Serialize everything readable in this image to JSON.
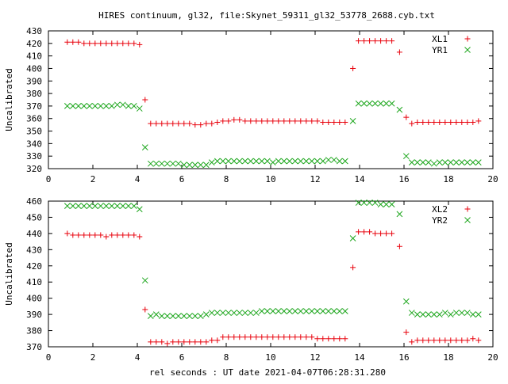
{
  "title": "HIRES continuum, gl32, file:Skynet_59311_gl32_53778_2688.cyb.txt",
  "xlabel": "rel seconds : UT date 2021-04-07T06:28:31.280",
  "colors": {
    "red": "#e8000b",
    "green": "#1fa71f"
  },
  "chart_data": [
    {
      "type": "scatter",
      "ylabel": "Uncalibrated",
      "xlim": [
        0,
        20
      ],
      "ylim": [
        320,
        430
      ],
      "xticks": [
        0,
        2,
        4,
        6,
        8,
        10,
        12,
        14,
        16,
        18,
        20
      ],
      "yticks": [
        320,
        330,
        340,
        350,
        360,
        370,
        380,
        390,
        400,
        410,
        420,
        430
      ],
      "legend_position": "top-right",
      "series": [
        {
          "name": "XL1",
          "marker": "plus",
          "color": "#e8000b",
          "x": [
            0.85,
            1.1,
            1.35,
            1.6,
            1.85,
            2.1,
            2.35,
            2.6,
            2.85,
            3.1,
            3.35,
            3.6,
            3.85,
            4.1,
            4.35,
            4.6,
            4.85,
            5.1,
            5.35,
            5.6,
            5.85,
            6.1,
            6.35,
            6.6,
            6.85,
            7.1,
            7.35,
            7.6,
            7.85,
            8.1,
            8.35,
            8.6,
            8.85,
            9.1,
            9.35,
            9.6,
            9.85,
            10.1,
            10.35,
            10.6,
            10.85,
            11.1,
            11.35,
            11.6,
            11.85,
            12.1,
            12.35,
            12.6,
            12.85,
            13.1,
            13.35,
            13.7,
            13.95,
            14.2,
            14.45,
            14.7,
            14.95,
            15.2,
            15.45,
            15.8,
            16.1,
            16.35,
            16.6,
            16.85,
            17.1,
            17.35,
            17.6,
            17.85,
            18.1,
            18.35,
            18.6,
            18.85,
            19.1,
            19.35
          ],
          "y": [
            421,
            421,
            421,
            420,
            420,
            420,
            420,
            420,
            420,
            420,
            420,
            420,
            420,
            419,
            375,
            356,
            356,
            356,
            356,
            356,
            356,
            356,
            356,
            355,
            355,
            356,
            356,
            357,
            358,
            358,
            359,
            359,
            358,
            358,
            358,
            358,
            358,
            358,
            358,
            358,
            358,
            358,
            358,
            358,
            358,
            358,
            357,
            357,
            357,
            357,
            357,
            400,
            422,
            422,
            422,
            422,
            422,
            422,
            422,
            413,
            361,
            356,
            357,
            357,
            357,
            357,
            357,
            357,
            357,
            357,
            357,
            357,
            357,
            358
          ]
        },
        {
          "name": "YR1",
          "marker": "x",
          "color": "#1fa71f",
          "x": [
            0.85,
            1.1,
            1.35,
            1.6,
            1.85,
            2.1,
            2.35,
            2.6,
            2.85,
            3.1,
            3.35,
            3.6,
            3.85,
            4.1,
            4.35,
            4.6,
            4.85,
            5.1,
            5.35,
            5.6,
            5.85,
            6.1,
            6.35,
            6.6,
            6.85,
            7.1,
            7.35,
            7.6,
            7.85,
            8.1,
            8.35,
            8.6,
            8.85,
            9.1,
            9.35,
            9.6,
            9.85,
            10.1,
            10.35,
            10.6,
            10.85,
            11.1,
            11.35,
            11.6,
            11.85,
            12.1,
            12.35,
            12.6,
            12.85,
            13.1,
            13.35,
            13.7,
            13.95,
            14.2,
            14.45,
            14.7,
            14.95,
            15.2,
            15.45,
            15.8,
            16.1,
            16.35,
            16.6,
            16.85,
            17.1,
            17.35,
            17.6,
            17.85,
            18.1,
            18.35,
            18.6,
            18.85,
            19.1,
            19.35
          ],
          "y": [
            370,
            370,
            370,
            370,
            370,
            370,
            370,
            370,
            370,
            371,
            371,
            370,
            370,
            368,
            337,
            324,
            324,
            324,
            324,
            324,
            324,
            323,
            323,
            323,
            323,
            323,
            325,
            326,
            326,
            326,
            326,
            326,
            326,
            326,
            326,
            326,
            326,
            325,
            326,
            326,
            326,
            326,
            326,
            326,
            326,
            326,
            326,
            327,
            327,
            326,
            326,
            358,
            372,
            372,
            372,
            372,
            372,
            372,
            372,
            367,
            330,
            325,
            325,
            325,
            325,
            324,
            325,
            325,
            325,
            325,
            325,
            325,
            325,
            325
          ]
        }
      ]
    },
    {
      "type": "scatter",
      "ylabel": "Uncalibrated",
      "xlim": [
        0,
        20
      ],
      "ylim": [
        370,
        460
      ],
      "xticks": [
        0,
        2,
        4,
        6,
        8,
        10,
        12,
        14,
        16,
        18,
        20
      ],
      "yticks": [
        370,
        380,
        390,
        400,
        410,
        420,
        430,
        440,
        450,
        460
      ],
      "legend_position": "top-right",
      "series": [
        {
          "name": "XL2",
          "marker": "plus",
          "color": "#e8000b",
          "x": [
            0.85,
            1.1,
            1.35,
            1.6,
            1.85,
            2.1,
            2.35,
            2.6,
            2.85,
            3.1,
            3.35,
            3.6,
            3.85,
            4.1,
            4.35,
            4.6,
            4.85,
            5.1,
            5.35,
            5.6,
            5.85,
            6.1,
            6.35,
            6.6,
            6.85,
            7.1,
            7.35,
            7.6,
            7.85,
            8.1,
            8.35,
            8.6,
            8.85,
            9.1,
            9.35,
            9.6,
            9.85,
            10.1,
            10.35,
            10.6,
            10.85,
            11.1,
            11.35,
            11.6,
            11.85,
            12.1,
            12.35,
            12.6,
            12.85,
            13.1,
            13.35,
            13.7,
            13.95,
            14.2,
            14.45,
            14.7,
            14.95,
            15.2,
            15.45,
            15.8,
            16.1,
            16.35,
            16.6,
            16.85,
            17.1,
            17.35,
            17.6,
            17.85,
            18.1,
            18.35,
            18.6,
            18.85,
            19.1,
            19.35
          ],
          "y": [
            440,
            439,
            439,
            439,
            439,
            439,
            439,
            438,
            439,
            439,
            439,
            439,
            439,
            438,
            393,
            373,
            373,
            373,
            372,
            373,
            373,
            373,
            373,
            373,
            373,
            373,
            374,
            374,
            376,
            376,
            376,
            376,
            376,
            376,
            376,
            376,
            376,
            376,
            376,
            376,
            376,
            376,
            376,
            376,
            376,
            375,
            375,
            375,
            375,
            375,
            375,
            419,
            441,
            441,
            441,
            440,
            440,
            440,
            440,
            432,
            379,
            373,
            374,
            374,
            374,
            374,
            374,
            374,
            374,
            374,
            374,
            374,
            375,
            374
          ]
        },
        {
          "name": "YR2",
          "marker": "x",
          "color": "#1fa71f",
          "x": [
            0.85,
            1.1,
            1.35,
            1.6,
            1.85,
            2.1,
            2.35,
            2.6,
            2.85,
            3.1,
            3.35,
            3.6,
            3.85,
            4.1,
            4.35,
            4.6,
            4.85,
            5.1,
            5.35,
            5.6,
            5.85,
            6.1,
            6.35,
            6.6,
            6.85,
            7.1,
            7.35,
            7.6,
            7.85,
            8.1,
            8.35,
            8.6,
            8.85,
            9.1,
            9.35,
            9.6,
            9.85,
            10.1,
            10.35,
            10.6,
            10.85,
            11.1,
            11.35,
            11.6,
            11.85,
            12.1,
            12.35,
            12.6,
            12.85,
            13.1,
            13.35,
            13.7,
            13.95,
            14.2,
            14.45,
            14.7,
            14.95,
            15.2,
            15.45,
            15.8,
            16.1,
            16.35,
            16.6,
            16.85,
            17.1,
            17.35,
            17.6,
            17.85,
            18.1,
            18.35,
            18.6,
            18.85,
            19.1,
            19.35
          ],
          "y": [
            457,
            457,
            457,
            457,
            457,
            457,
            457,
            457,
            457,
            457,
            457,
            457,
            457,
            455,
            411,
            389,
            390,
            389,
            389,
            389,
            389,
            389,
            389,
            389,
            389,
            390,
            391,
            391,
            391,
            391,
            391,
            391,
            391,
            391,
            391,
            392,
            392,
            392,
            392,
            392,
            392,
            392,
            392,
            392,
            392,
            392,
            392,
            392,
            392,
            392,
            392,
            437,
            459,
            459,
            459,
            459,
            458,
            458,
            458,
            452,
            398,
            391,
            390,
            390,
            390,
            390,
            390,
            391,
            390,
            391,
            391,
            391,
            390,
            390
          ]
        }
      ]
    }
  ]
}
